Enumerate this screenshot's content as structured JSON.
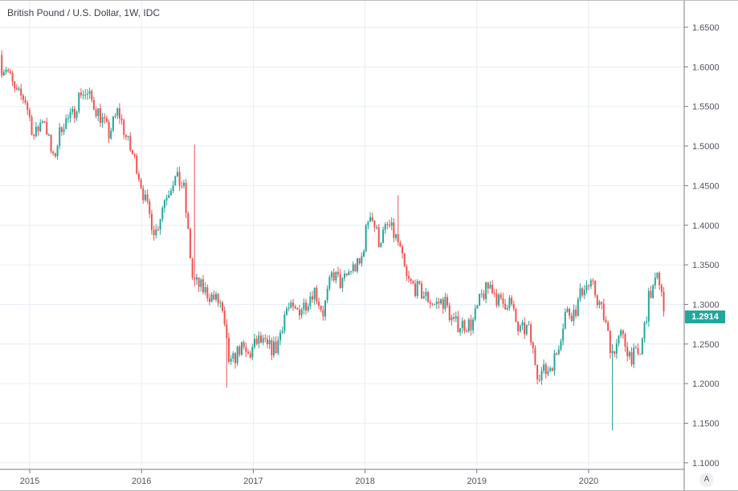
{
  "chart_data": {
    "type": "candlestick",
    "title": "British Pound / U.S. Dollar, 1W, IDC",
    "interval": "1W",
    "ylim": [
      1.1,
      1.65
    ],
    "y_ticks": [
      "1.1000",
      "1.1500",
      "1.2000",
      "1.2500",
      "1.3000",
      "1.3500",
      "1.4000",
      "1.4500",
      "1.5000",
      "1.5500",
      "1.6000",
      "1.6500"
    ],
    "x_ticks": [
      "2015",
      "2016",
      "2017",
      "2018",
      "2019",
      "2020"
    ],
    "grid": true,
    "last_price": "1.2914",
    "colors": {
      "up": "#26a69a",
      "down": "#ef5350",
      "grid": "#e6eef5",
      "axis": "#787b86"
    },
    "monthly_close_estimates": [
      [
        "2014-10",
        1.6
      ],
      [
        "2014-11",
        1.565
      ],
      [
        "2014-12",
        1.56
      ],
      [
        "2015-01",
        1.51
      ],
      [
        "2015-02",
        1.54
      ],
      [
        "2015-03",
        1.48
      ],
      [
        "2015-04",
        1.53
      ],
      [
        "2015-05",
        1.535
      ],
      [
        "2015-06",
        1.57
      ],
      [
        "2015-07",
        1.56
      ],
      [
        "2015-08",
        1.54
      ],
      [
        "2015-09",
        1.515
      ],
      [
        "2015-10",
        1.545
      ],
      [
        "2015-11",
        1.505
      ],
      [
        "2015-12",
        1.475
      ],
      [
        "2016-01",
        1.425
      ],
      [
        "2016-02",
        1.39
      ],
      [
        "2016-03",
        1.435
      ],
      [
        "2016-04",
        1.46
      ],
      [
        "2016-05",
        1.45
      ],
      [
        "2016-06",
        1.33
      ],
      [
        "2016-07",
        1.32
      ],
      [
        "2016-08",
        1.31
      ],
      [
        "2016-09",
        1.3
      ],
      [
        "2016-10",
        1.22
      ],
      [
        "2016-11",
        1.245
      ],
      [
        "2016-12",
        1.235
      ],
      [
        "2017-01",
        1.255
      ],
      [
        "2017-02",
        1.245
      ],
      [
        "2017-03",
        1.245
      ],
      [
        "2017-04",
        1.295
      ],
      [
        "2017-05",
        1.29
      ],
      [
        "2017-06",
        1.3
      ],
      [
        "2017-07",
        1.32
      ],
      [
        "2017-08",
        1.29
      ],
      [
        "2017-09",
        1.34
      ],
      [
        "2017-10",
        1.325
      ],
      [
        "2017-11",
        1.345
      ],
      [
        "2017-12",
        1.35
      ],
      [
        "2018-01",
        1.42
      ],
      [
        "2018-02",
        1.38
      ],
      [
        "2018-03",
        1.4
      ],
      [
        "2018-04",
        1.38
      ],
      [
        "2018-05",
        1.33
      ],
      [
        "2018-06",
        1.32
      ],
      [
        "2018-07",
        1.31
      ],
      [
        "2018-08",
        1.3
      ],
      [
        "2018-09",
        1.305
      ],
      [
        "2018-10",
        1.275
      ],
      [
        "2018-11",
        1.275
      ],
      [
        "2018-12",
        1.275
      ],
      [
        "2019-01",
        1.31
      ],
      [
        "2019-02",
        1.325
      ],
      [
        "2019-03",
        1.3
      ],
      [
        "2019-04",
        1.305
      ],
      [
        "2019-05",
        1.265
      ],
      [
        "2019-06",
        1.27
      ],
      [
        "2019-07",
        1.215
      ],
      [
        "2019-08",
        1.215
      ],
      [
        "2019-09",
        1.235
      ],
      [
        "2019-10",
        1.29
      ],
      [
        "2019-11",
        1.29
      ],
      [
        "2019-12",
        1.325
      ],
      [
        "2020-01",
        1.32
      ],
      [
        "2020-02",
        1.29
      ],
      [
        "2020-03",
        1.24
      ],
      [
        "2020-04",
        1.26
      ],
      [
        "2020-05",
        1.235
      ],
      [
        "2020-06",
        1.235
      ],
      [
        "2020-07",
        1.31
      ],
      [
        "2020-08",
        1.335
      ],
      [
        "2020-09",
        1.2914
      ]
    ],
    "extremes": [
      {
        "date": "2016-06-24",
        "high": 1.5018,
        "low": 1.3229
      },
      {
        "date": "2016-10-07",
        "high": 1.25,
        "low": 1.195
      },
      {
        "date": "2020-03-20",
        "high": 1.25,
        "low": 1.141
      },
      {
        "date": "2018-04-17",
        "high": 1.4377,
        "low": 1.41
      }
    ],
    "auto_scale_label": "A"
  }
}
